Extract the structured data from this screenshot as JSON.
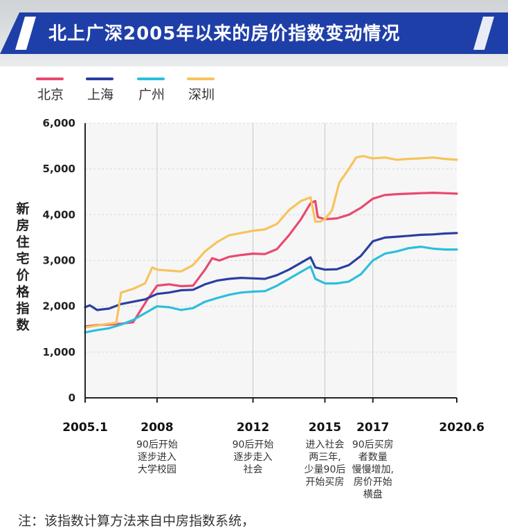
{
  "title": "北上广深2005年以来的房价指数变动情况",
  "note": "注：该指数计算方法来自中房指数系统，",
  "colors": {
    "banner": "#1f3fa8",
    "beijing": "#e8496e",
    "shanghai": "#2a3ea0",
    "guangzhou": "#2bbfdc",
    "shenzhen": "#f7c35c"
  },
  "chart_data": {
    "type": "line",
    "ylabel": "新房住宅价格指数",
    "ylim": [
      0,
      6000
    ],
    "yticks": [
      "0",
      "1,000",
      "2,000",
      "3,000",
      "4,000",
      "5,000",
      "6,000"
    ],
    "xlim": [
      2005.0,
      2020.5
    ],
    "xticks": [
      {
        "x": 2005.0,
        "label": "2005.1"
      },
      {
        "x": 2008.0,
        "label": "2008"
      },
      {
        "x": 2012.0,
        "label": "2012"
      },
      {
        "x": 2015.0,
        "label": "2015"
      },
      {
        "x": 2017.0,
        "label": "2017"
      },
      {
        "x": 2020.5,
        "label": "2020.6"
      }
    ],
    "grid": true,
    "legend": "top-left",
    "annotations": [
      {
        "x": 2008.0,
        "lines": [
          "90后开始",
          "逐步进入",
          "大学校园"
        ]
      },
      {
        "x": 2012.0,
        "lines": [
          "90后开始",
          "逐步走入",
          "社会"
        ]
      },
      {
        "x": 2015.0,
        "lines": [
          "进入社会",
          "两三年,",
          "少量90后",
          "开始买房"
        ]
      },
      {
        "x": 2017.0,
        "lines": [
          "90后买房",
          "者数量",
          "慢慢增加,",
          "房价开始",
          "横盘"
        ]
      }
    ],
    "series": [
      {
        "name": "北京",
        "color_key": "beijing",
        "points": [
          [
            2005.0,
            1560
          ],
          [
            2005.5,
            1590
          ],
          [
            2006.0,
            1600
          ],
          [
            2006.5,
            1620
          ],
          [
            2007.0,
            1650
          ],
          [
            2007.3,
            1900
          ],
          [
            2007.6,
            2150
          ],
          [
            2008.0,
            2450
          ],
          [
            2008.5,
            2480
          ],
          [
            2009.0,
            2440
          ],
          [
            2009.5,
            2450
          ],
          [
            2010.0,
            2800
          ],
          [
            2010.3,
            3050
          ],
          [
            2010.6,
            3000
          ],
          [
            2011.0,
            3080
          ],
          [
            2011.5,
            3120
          ],
          [
            2012.0,
            3150
          ],
          [
            2012.5,
            3140
          ],
          [
            2013.0,
            3250
          ],
          [
            2013.5,
            3550
          ],
          [
            2014.0,
            3900
          ],
          [
            2014.4,
            4250
          ],
          [
            2014.6,
            4300
          ],
          [
            2014.7,
            3950
          ],
          [
            2015.0,
            3900
          ],
          [
            2015.5,
            3920
          ],
          [
            2016.0,
            4000
          ],
          [
            2016.5,
            4150
          ],
          [
            2017.0,
            4350
          ],
          [
            2017.5,
            4430
          ],
          [
            2018.0,
            4450
          ],
          [
            2018.5,
            4460
          ],
          [
            2019.0,
            4470
          ],
          [
            2019.5,
            4480
          ],
          [
            2020.0,
            4470
          ],
          [
            2020.5,
            4460
          ]
        ]
      },
      {
        "name": "上海",
        "color_key": "shanghai",
        "points": [
          [
            2005.0,
            1980
          ],
          [
            2005.2,
            2020
          ],
          [
            2005.5,
            1920
          ],
          [
            2006.0,
            1950
          ],
          [
            2006.5,
            2050
          ],
          [
            2007.0,
            2100
          ],
          [
            2007.5,
            2150
          ],
          [
            2008.0,
            2270
          ],
          [
            2008.5,
            2300
          ],
          [
            2009.0,
            2350
          ],
          [
            2009.5,
            2360
          ],
          [
            2010.0,
            2480
          ],
          [
            2010.5,
            2560
          ],
          [
            2011.0,
            2600
          ],
          [
            2011.5,
            2620
          ],
          [
            2012.0,
            2610
          ],
          [
            2012.5,
            2600
          ],
          [
            2013.0,
            2680
          ],
          [
            2013.5,
            2800
          ],
          [
            2014.0,
            2950
          ],
          [
            2014.4,
            3070
          ],
          [
            2014.6,
            2850
          ],
          [
            2015.0,
            2800
          ],
          [
            2015.5,
            2810
          ],
          [
            2016.0,
            2900
          ],
          [
            2016.5,
            3100
          ],
          [
            2017.0,
            3420
          ],
          [
            2017.5,
            3500
          ],
          [
            2018.0,
            3520
          ],
          [
            2018.5,
            3540
          ],
          [
            2019.0,
            3560
          ],
          [
            2019.5,
            3570
          ],
          [
            2020.0,
            3590
          ],
          [
            2020.5,
            3600
          ]
        ]
      },
      {
        "name": "广州",
        "color_key": "guangzhou",
        "points": [
          [
            2005.0,
            1430
          ],
          [
            2005.5,
            1480
          ],
          [
            2006.0,
            1520
          ],
          [
            2006.5,
            1600
          ],
          [
            2007.0,
            1700
          ],
          [
            2007.5,
            1850
          ],
          [
            2008.0,
            2000
          ],
          [
            2008.5,
            1980
          ],
          [
            2009.0,
            1920
          ],
          [
            2009.5,
            1960
          ],
          [
            2010.0,
            2100
          ],
          [
            2010.5,
            2180
          ],
          [
            2011.0,
            2250
          ],
          [
            2011.5,
            2300
          ],
          [
            2012.0,
            2320
          ],
          [
            2012.5,
            2330
          ],
          [
            2013.0,
            2450
          ],
          [
            2013.5,
            2600
          ],
          [
            2014.0,
            2750
          ],
          [
            2014.4,
            2870
          ],
          [
            2014.6,
            2600
          ],
          [
            2015.0,
            2500
          ],
          [
            2015.5,
            2500
          ],
          [
            2016.0,
            2540
          ],
          [
            2016.5,
            2700
          ],
          [
            2017.0,
            3000
          ],
          [
            2017.5,
            3150
          ],
          [
            2018.0,
            3200
          ],
          [
            2018.5,
            3270
          ],
          [
            2019.0,
            3300
          ],
          [
            2019.5,
            3260
          ],
          [
            2020.0,
            3240
          ],
          [
            2020.5,
            3240
          ]
        ]
      },
      {
        "name": "深圳",
        "color_key": "shenzhen",
        "points": [
          [
            2005.0,
            1540
          ],
          [
            2005.5,
            1580
          ],
          [
            2006.0,
            1620
          ],
          [
            2006.3,
            1640
          ],
          [
            2006.5,
            2300
          ],
          [
            2007.0,
            2380
          ],
          [
            2007.5,
            2500
          ],
          [
            2007.8,
            2850
          ],
          [
            2008.0,
            2800
          ],
          [
            2008.5,
            2780
          ],
          [
            2009.0,
            2760
          ],
          [
            2009.5,
            2900
          ],
          [
            2010.0,
            3200
          ],
          [
            2010.5,
            3400
          ],
          [
            2011.0,
            3550
          ],
          [
            2011.5,
            3600
          ],
          [
            2012.0,
            3650
          ],
          [
            2012.5,
            3680
          ],
          [
            2013.0,
            3800
          ],
          [
            2013.5,
            4100
          ],
          [
            2014.0,
            4300
          ],
          [
            2014.4,
            4380
          ],
          [
            2014.6,
            3850
          ],
          [
            2014.8,
            3850
          ],
          [
            2015.0,
            3900
          ],
          [
            2015.3,
            4100
          ],
          [
            2015.6,
            4700
          ],
          [
            2016.0,
            5000
          ],
          [
            2016.3,
            5250
          ],
          [
            2016.6,
            5280
          ],
          [
            2017.0,
            5230
          ],
          [
            2017.5,
            5250
          ],
          [
            2018.0,
            5200
          ],
          [
            2018.5,
            5220
          ],
          [
            2019.0,
            5230
          ],
          [
            2019.5,
            5250
          ],
          [
            2020.0,
            5220
          ],
          [
            2020.5,
            5200
          ]
        ]
      }
    ]
  }
}
